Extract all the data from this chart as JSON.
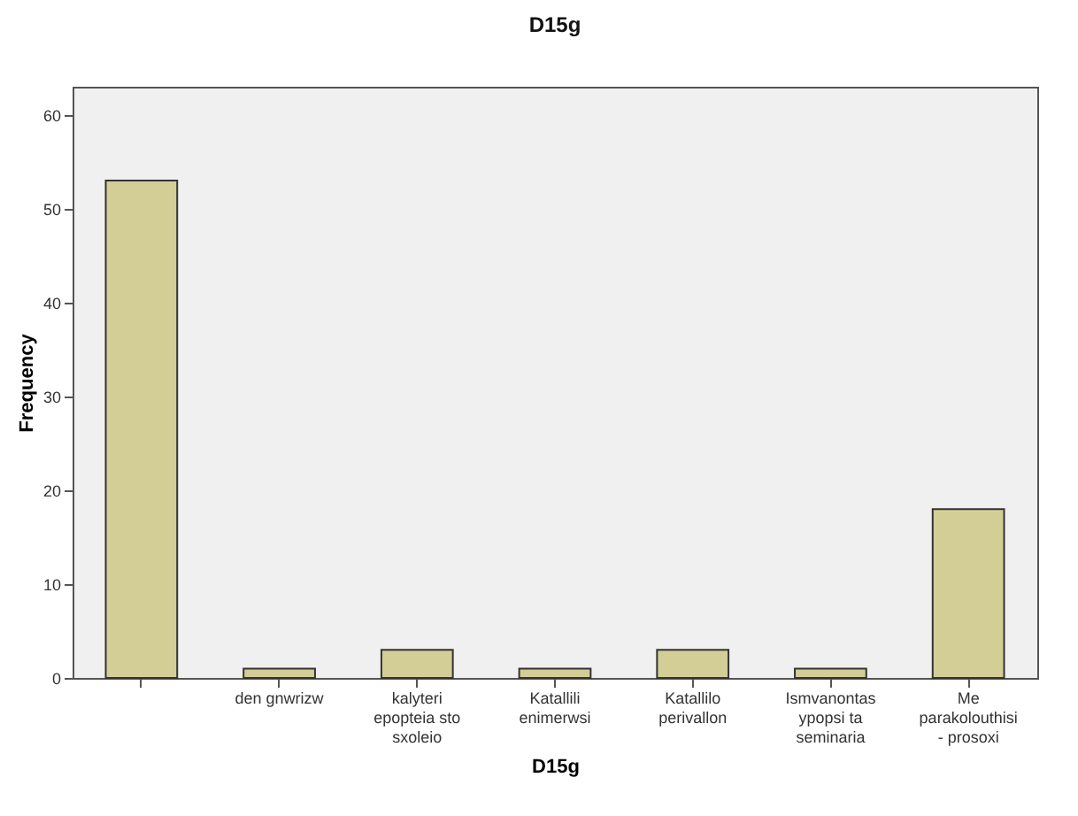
{
  "chart_data": {
    "type": "bar",
    "title": "D15g",
    "xlabel": "D15g",
    "ylabel": "Frequency",
    "categories": [
      null,
      "den gnwrizw",
      "kalyteri\nepopteia sto\nsxoleio",
      "Katallili\nenimerwsi",
      "Katallilo\nperivallon",
      "Ismvanontas\nypopsi ta\nseminaria",
      "Me\nparakolouthisi\n- prosoxi"
    ],
    "values": [
      53,
      1,
      3,
      1,
      3,
      1,
      18
    ],
    "color": "#d3ce96",
    "ylim": [
      0,
      63
    ],
    "yticks": [
      0,
      10,
      20,
      30,
      40,
      50,
      60
    ],
    "grid": false
  }
}
